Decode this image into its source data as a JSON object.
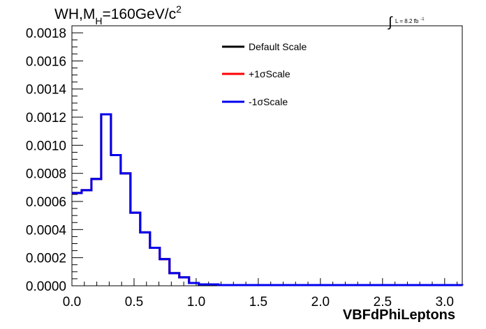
{
  "chart_data": {
    "type": "line",
    "title": "WH,M_{H}=160GeV/c^{2}",
    "title_parts": {
      "main": "WH,M",
      "sub": "H",
      "rest": "=160GeV/c",
      "sup": "2"
    },
    "lumi_label": {
      "main": "L = 8.2 fb",
      "sup": "-1"
    },
    "xlabel": "VBFdPhiLeptons",
    "ylabel": "",
    "xlim": [
      0,
      3.1416
    ],
    "ylim": [
      0,
      0.00185
    ],
    "xticks": [
      0.0,
      0.5,
      1.0,
      1.5,
      2.0,
      2.5,
      3.0
    ],
    "xtick_labels": [
      "0.0",
      "0.5",
      "1.0",
      "1.5",
      "2.0",
      "2.5",
      "3.0"
    ],
    "yticks": [
      0,
      0.0002,
      0.0004,
      0.0006,
      0.0008,
      0.001,
      0.0012,
      0.0014,
      0.0016,
      0.0018
    ],
    "ytick_labels": [
      "0.0000",
      "0.0002",
      "0.0004",
      "0.0006",
      "0.0008",
      "0.0010",
      "0.0012",
      "0.0014",
      "0.0016",
      "0.0018"
    ],
    "grid": false,
    "legend_position": "top-right",
    "bin_edges": [
      0,
      0.0785,
      0.157,
      0.2356,
      0.3142,
      0.3927,
      0.4712,
      0.5498,
      0.6283,
      0.7069,
      0.7854,
      0.8639,
      0.9425,
      1.021,
      1.0996,
      1.1781,
      3.1416
    ],
    "series": [
      {
        "name": "Default Scale",
        "color": "#000000",
        "values": [
          0.00066,
          0.00068,
          0.00076,
          0.00122,
          0.00093,
          0.0008,
          0.00052,
          0.00038,
          0.00027,
          0.00019,
          9e-05,
          6e-05,
          2e-05,
          1e-05,
          1e-05,
          5e-06,
          3e-06
        ]
      },
      {
        "name": "+1σScale",
        "color": "#ff0000",
        "values": [
          0.00066,
          0.00068,
          0.00076,
          0.00122,
          0.00093,
          0.0008,
          0.00052,
          0.00038,
          0.00027,
          0.00019,
          9e-05,
          6e-05,
          2e-05,
          1e-05,
          1e-05,
          5e-06,
          3e-06
        ]
      },
      {
        "name": "-1σScale",
        "color": "#0000ee",
        "values": [
          0.00066,
          0.00068,
          0.00076,
          0.00122,
          0.00093,
          0.0008,
          0.00052,
          0.00038,
          0.00027,
          0.00019,
          9e-05,
          6e-05,
          2e-05,
          1e-05,
          1e-05,
          5e-06,
          3e-06
        ]
      }
    ]
  }
}
